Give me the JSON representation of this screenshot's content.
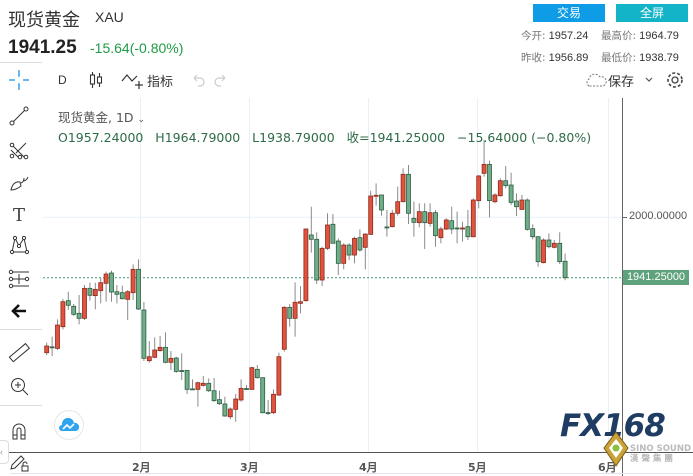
{
  "header": {
    "title": "现货黄金",
    "symbol": "XAU",
    "last_price": "1941.25",
    "change": "-15.64(-0.80%)",
    "trade_button": "交易",
    "fullscreen_button": "全屏",
    "stats": {
      "open_label": "今开:",
      "open": "1957.24",
      "high_label": "最高价:",
      "high": "1964.79",
      "prev_close_label": "昨收:",
      "prev_close": "1956.89",
      "low_label": "最低价:",
      "low": "1938.79"
    },
    "colors": {
      "trade": "#0f9ce6",
      "fullscreen": "#14b4c8",
      "change": "#1f9a46"
    }
  },
  "toolbar": {
    "interval": "D",
    "indicators_label": "指标",
    "save_label": "保存",
    "icons": [
      "crosshair-icon",
      "candlestick-icon",
      "indicator-icon",
      "undo-icon",
      "redo-icon",
      "cloud-icon",
      "chevron-down-icon",
      "gear-icon"
    ]
  },
  "left_toolbar": {
    "icons": [
      "crosshair-icon",
      "trend-line-icon",
      "pitchfork-icon",
      "brush-icon",
      "text-icon",
      "pattern-icon",
      "measure-icon",
      "back-arrow-icon",
      "ruler-icon",
      "zoom-in-icon",
      "magnet-icon",
      "lock-drawing-icon"
    ]
  },
  "legend": {
    "title": "现货黄金, 1D",
    "ohlc": "O1957.24000   H1964.79000   L1938.79000   收=1941.25000   −15.64000 (−0.80%)"
  },
  "price_axis": {
    "labels": [
      "2000.00000"
    ],
    "current_price_label": "1941.25000"
  },
  "watermark": {
    "brand": "FX168",
    "sub1": "SINO SOUND",
    "sub2": "漢 聲 集 團"
  },
  "chart_data": {
    "type": "candlestick",
    "interval": "1D",
    "x_tick_labels": [
      "2月",
      "3月",
      "4月",
      "5月",
      "6月"
    ],
    "y_tick_labels": [
      2000
    ],
    "ylim": [
      1772,
      2114
    ],
    "current_price": 1941.25,
    "up_color": "#e0533f",
    "down_color": "#6fae89",
    "ohlc_fields": [
      "open",
      "high",
      "low",
      "close"
    ],
    "candles": [
      [
        1868.3,
        1878.0,
        1866.0,
        1874.8
      ],
      [
        1874.0,
        1883.9,
        1865.1,
        1873.5
      ],
      [
        1872.5,
        1900.7,
        1870.9,
        1895.2
      ],
      [
        1893.6,
        1920.5,
        1891.0,
        1917.9
      ],
      [
        1918.9,
        1927.6,
        1909.8,
        1914.4
      ],
      [
        1913.4,
        1915.7,
        1904.0,
        1905.6
      ],
      [
        1906.6,
        1924.4,
        1895.9,
        1901.7
      ],
      [
        1901.7,
        1934.1,
        1900.1,
        1930.9
      ],
      [
        1930.9,
        1936.4,
        1918.9,
        1924.1
      ],
      [
        1923.8,
        1936.4,
        1910.5,
        1929.9
      ],
      [
        1928.6,
        1941.3,
        1916.3,
        1936.4
      ],
      [
        1935.8,
        1947.1,
        1917.9,
        1944.8
      ],
      [
        1945.8,
        1948.1,
        1917.9,
        1927.3
      ],
      [
        1927.6,
        1934.1,
        1916.3,
        1925.1
      ],
      [
        1926.7,
        1933.5,
        1920.2,
        1920.8
      ],
      [
        1920.2,
        1929.3,
        1900.1,
        1927.6
      ],
      [
        1926.7,
        1954.2,
        1919.5,
        1949.4
      ],
      [
        1949.4,
        1959.1,
        1909.8,
        1910.8
      ],
      [
        1909.8,
        1917.6,
        1860.2,
        1862.8
      ],
      [
        1860.5,
        1879.6,
        1858.6,
        1864.4
      ],
      [
        1863.8,
        1883.2,
        1862.8,
        1870.9
      ],
      [
        1870.3,
        1884.5,
        1869.3,
        1873.5
      ],
      [
        1873.5,
        1888.1,
        1857.9,
        1858.9
      ],
      [
        1858.9,
        1869.9,
        1851.4,
        1862.8
      ],
      [
        1863.1,
        1864.4,
        1848.8,
        1850.1
      ],
      [
        1850.9,
        1867.7,
        1841.7,
        1850.7
      ],
      [
        1851.1,
        1851.1,
        1828.1,
        1832.6
      ],
      [
        1833.1,
        1842.4,
        1832.0,
        1832.9
      ],
      [
        1832.6,
        1840.1,
        1815.8,
        1839.1
      ],
      [
        1836.5,
        1845.6,
        1835.2,
        1838.5
      ],
      [
        1838.5,
        1843.3,
        1830.0,
        1831.3
      ],
      [
        1831.3,
        1843.7,
        1820.6,
        1821.6
      ],
      [
        1822.6,
        1831.3,
        1817.4,
        1818.7
      ],
      [
        1818.4,
        1825.5,
        1806.0,
        1806.7
      ],
      [
        1806.0,
        1815.1,
        1803.5,
        1813.5
      ],
      [
        1813.2,
        1828.1,
        1801.2,
        1823.2
      ],
      [
        1822.3,
        1842.4,
        1820.6,
        1833.6
      ],
      [
        1833.4,
        1836.9,
        1832.0,
        1833.2
      ],
      [
        1832.6,
        1854.7,
        1832.0,
        1853.7
      ],
      [
        1852.1,
        1856.3,
        1843.0,
        1844.0
      ],
      [
        1844.0,
        1844.0,
        1809.3,
        1809.9
      ],
      [
        1810.0,
        1822.3,
        1807.7,
        1809.8
      ],
      [
        1809.9,
        1832.6,
        1808.6,
        1827.8
      ],
      [
        1827.1,
        1868.3,
        1826.1,
        1864.4
      ],
      [
        1871.6,
        1913.7,
        1869.3,
        1912.4
      ],
      [
        1912.4,
        1915.7,
        1893.6,
        1901.7
      ],
      [
        1901.7,
        1936.7,
        1883.9,
        1917.3
      ],
      [
        1916.3,
        1933.2,
        1906.6,
        1917.9
      ],
      [
        1918.9,
        1989.3,
        1917.9,
        1988.6
      ],
      [
        1982.8,
        2010.3,
        1965.6,
        1978.6
      ],
      [
        1978.6,
        1985.4,
        1935.1,
        1939.0
      ],
      [
        1939.0,
        1971.4,
        1933.2,
        1969.8
      ],
      [
        1969.8,
        2003.9,
        1968.2,
        1992.5
      ],
      [
        1993.2,
        2003.2,
        1974.7,
        1974.7
      ],
      [
        1976.9,
        1979.5,
        1943.9,
        1955.2
      ],
      [
        1955.2,
        1974.7,
        1949.4,
        1973.0
      ],
      [
        1973.0,
        1974.7,
        1958.4,
        1963.3
      ],
      [
        1963.3,
        1981.2,
        1955.2,
        1979.5
      ],
      [
        1980.2,
        1988.3,
        1966.6,
        1968.2
      ],
      [
        1970.8,
        1984.4,
        1949.4,
        1983.7
      ],
      [
        1983.4,
        2025.9,
        1982.8,
        2020.7
      ],
      [
        2020.7,
        2033.0,
        2011.3,
        2021.4
      ],
      [
        2021.7,
        2021.7,
        2001.6,
        2007.1
      ],
      [
        1990.6,
        2007.1,
        1981.2,
        1990.2
      ],
      [
        1990.9,
        2007.1,
        1990.2,
        2003.9
      ],
      [
        2003.9,
        2029.8,
        2001.6,
        2015.2
      ],
      [
        2015.2,
        2047.6,
        2014.6,
        2041.8
      ],
      [
        2041.8,
        2050.9,
        1993.5,
        2003.9
      ],
      [
        1999.0,
        2015.2,
        1981.2,
        1995.1
      ],
      [
        1994.8,
        2013.6,
        1990.2,
        2005.5
      ],
      [
        2005.5,
        2013.6,
        1969.2,
        1994.8
      ],
      [
        1994.1,
        2013.6,
        1990.9,
        2004.5
      ],
      [
        2004.5,
        2007.1,
        1971.4,
        1982.1
      ],
      [
        1980.2,
        1990.9,
        1974.7,
        1988.6
      ],
      [
        1988.6,
        1999.0,
        1987.6,
        1997.4
      ],
      [
        1996.7,
        2010.3,
        1983.7,
        1988.6
      ],
      [
        1989.6,
        2005.5,
        1974.7,
        1988.9
      ],
      [
        1988.6,
        1995.7,
        1976.3,
        1989.6
      ],
      [
        1990.9,
        2007.1,
        1977.9,
        1981.1
      ],
      [
        1981.1,
        2018.4,
        1980.5,
        2016.8
      ],
      [
        2016.2,
        2041.1,
        2008.7,
        2040.2
      ],
      [
        2042.8,
        2075.2,
        2039.5,
        2051.5
      ],
      [
        2051.5,
        2055.1,
        1999.9,
        2016.2
      ],
      [
        2015.2,
        2023.3,
        2013.6,
        2021.7
      ],
      [
        2021.0,
        2037.9,
        2020.1,
        2035.6
      ],
      [
        2035.6,
        2049.9,
        2028.2,
        2030.8
      ],
      [
        2031.4,
        2043.4,
        2011.9,
        2014.5
      ],
      [
        2015.8,
        2023.3,
        2001.3,
        2010.3
      ],
      [
        2007.7,
        2021.7,
        2007.1,
        2016.8
      ],
      [
        2016.8,
        2018.4,
        1987.0,
        1988.3
      ],
      [
        1988.9,
        1993.1,
        1978.5,
        1981.1
      ],
      [
        1981.1,
        1981.8,
        1951.9,
        1956.8
      ],
      [
        1955.9,
        1979.5,
        1955.2,
        1977.9
      ],
      [
        1977.9,
        1984.4,
        1969.8,
        1971.4
      ],
      [
        1970.8,
        1977.9,
        1969.8,
        1974.7
      ],
      [
        1974.7,
        1985.4,
        1954.5,
        1956.9
      ],
      [
        1957.24,
        1964.79,
        1938.79,
        1941.25
      ]
    ]
  }
}
